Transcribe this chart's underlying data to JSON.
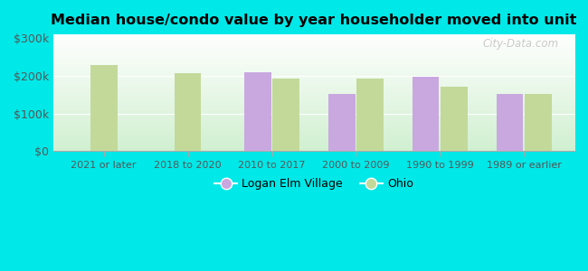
{
  "title": "Median house/condo value by year householder moved into unit",
  "categories": [
    "2021 or later",
    "2018 to 2020",
    "2010 to 2017",
    "2000 to 2009",
    "1990 to 1999",
    "1989 or earlier"
  ],
  "logan_elm": [
    null,
    null,
    210000,
    152000,
    197000,
    152000
  ],
  "ohio": [
    228000,
    208000,
    193000,
    193000,
    172000,
    153000
  ],
  "bar_color_logan": "#c9a8e0",
  "bar_color_ohio": "#c3d99a",
  "background_outer": "#00e8e8",
  "background_inner_top": "#eaf8ea",
  "background_inner_bottom": "#ffffff",
  "yticks": [
    0,
    100000,
    200000,
    300000
  ],
  "ylim": [
    0,
    310000
  ],
  "legend_labels": [
    "Logan Elm Village",
    "Ohio"
  ],
  "watermark": "City-Data.com",
  "bar_width": 0.32,
  "bar_gap": 0.02
}
